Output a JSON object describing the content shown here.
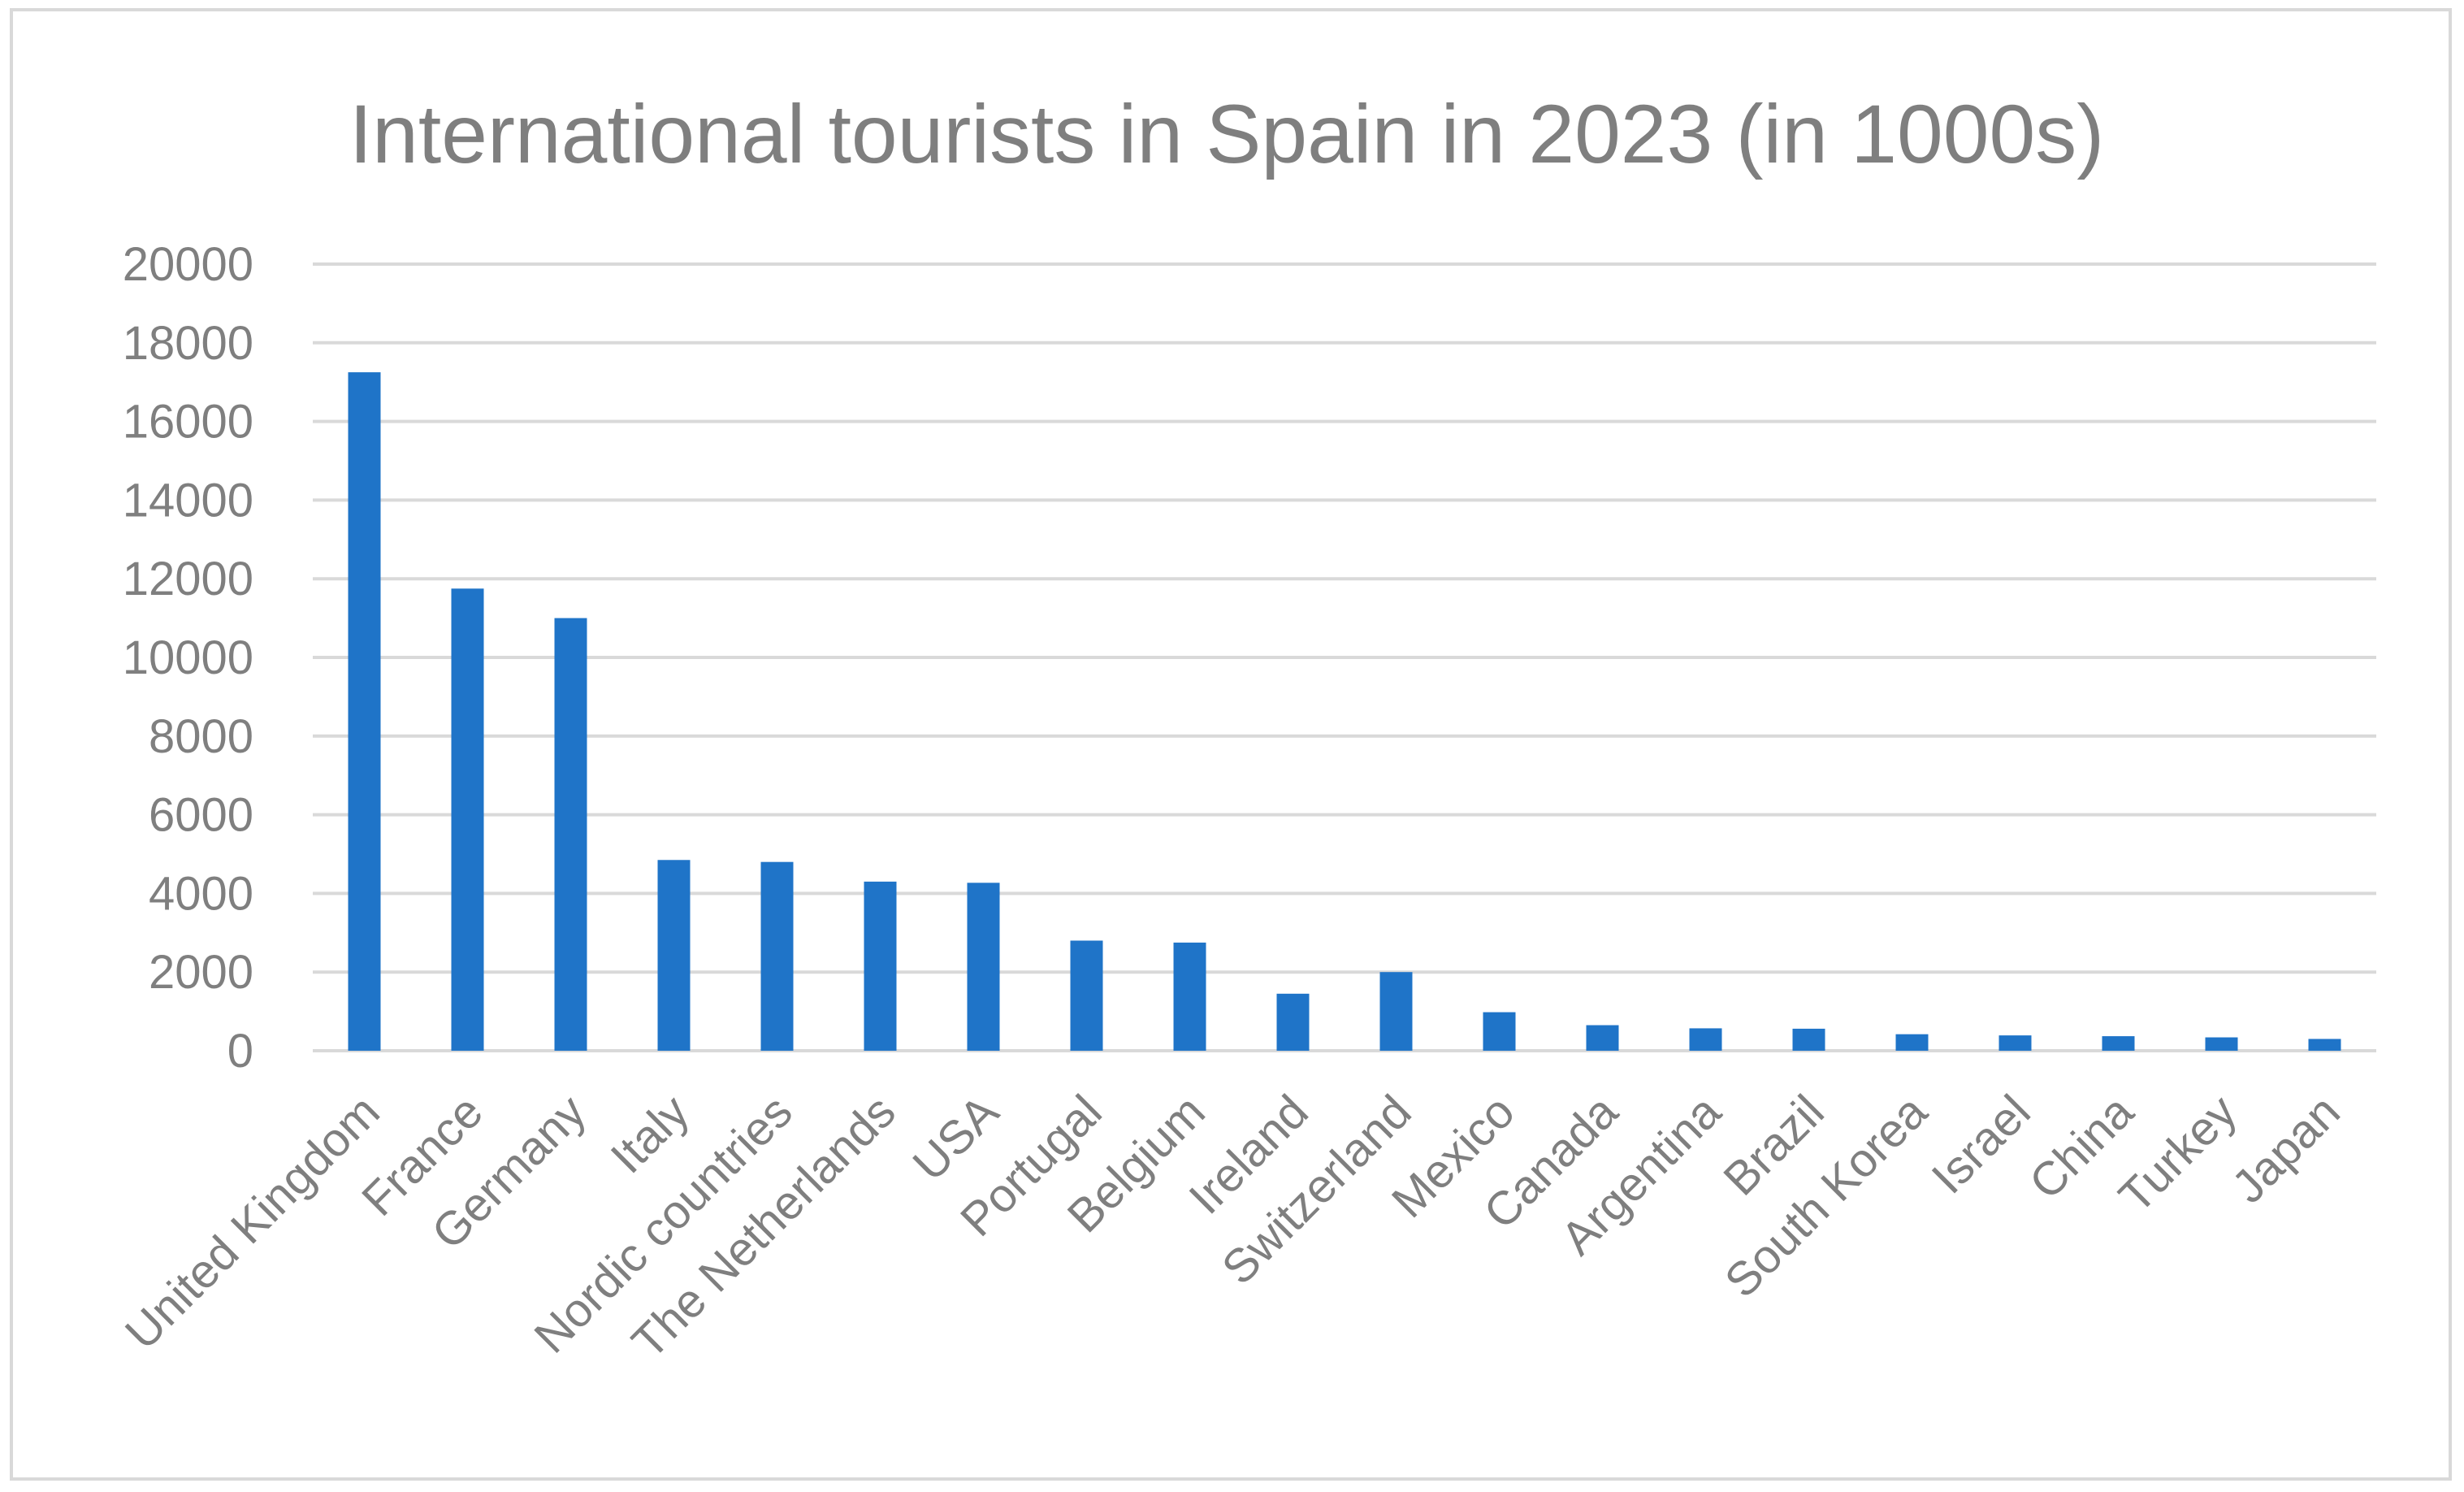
{
  "chart_data": {
    "type": "bar",
    "title": "International tourists in Spain in 2023 (in 1000s)",
    "xlabel": "",
    "ylabel": "",
    "categories": [
      "United Kingdom",
      "France",
      "Germany",
      "Italy",
      "Nordic countries",
      "The Netherlands",
      "USA",
      "Portugal",
      "Belgium",
      "Ireland",
      "Switzerland",
      "Mexico",
      "Canada",
      "Argentina",
      "Brazil",
      "South Korea",
      "Israel",
      "China",
      "Turkey",
      "Japan"
    ],
    "values": [
      17250,
      11750,
      11000,
      4850,
      4800,
      4300,
      4270,
      2800,
      2750,
      1450,
      2000,
      980,
      650,
      570,
      560,
      420,
      390,
      370,
      340,
      300
    ],
    "ylim": [
      0,
      20000
    ],
    "yticks": [
      "0",
      "2000",
      "4000",
      "6000",
      "8000",
      "10000",
      "12000",
      "14000",
      "16000",
      "18000",
      "20000"
    ],
    "grid": true,
    "legend": "none",
    "colors": {
      "bar": "#1f74c8",
      "grid": "#d9d9d9",
      "text": "#7f7f7f"
    }
  }
}
